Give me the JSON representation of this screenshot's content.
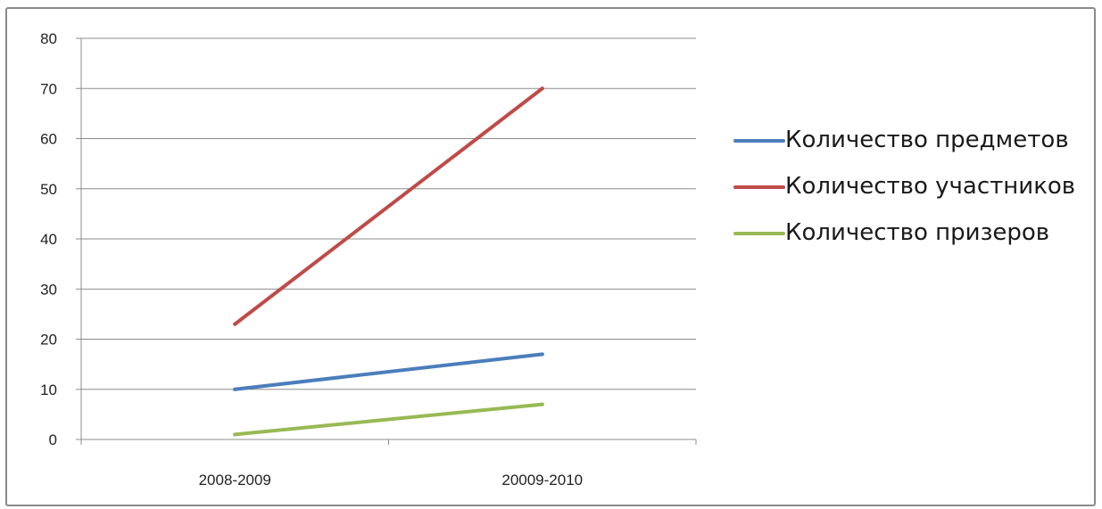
{
  "chart_data": {
    "type": "line",
    "categories": [
      "2008-2009",
      "20009-2010"
    ],
    "series": [
      {
        "name": "Количество предметов",
        "values": [
          10,
          17
        ],
        "color": "#4a7ebb"
      },
      {
        "name": "Количество участников",
        "values": [
          23,
          70
        ],
        "color": "#be4b48"
      },
      {
        "name": "Количество призеров",
        "values": [
          1,
          7
        ],
        "color": "#98b954"
      }
    ],
    "yticks": [
      "0",
      "10",
      "20",
      "30",
      "40",
      "50",
      "60",
      "70",
      "80"
    ],
    "ylim": [
      0,
      80
    ],
    "grid": true,
    "legend_position": "right",
    "title": "",
    "xlabel": "",
    "ylabel": ""
  }
}
